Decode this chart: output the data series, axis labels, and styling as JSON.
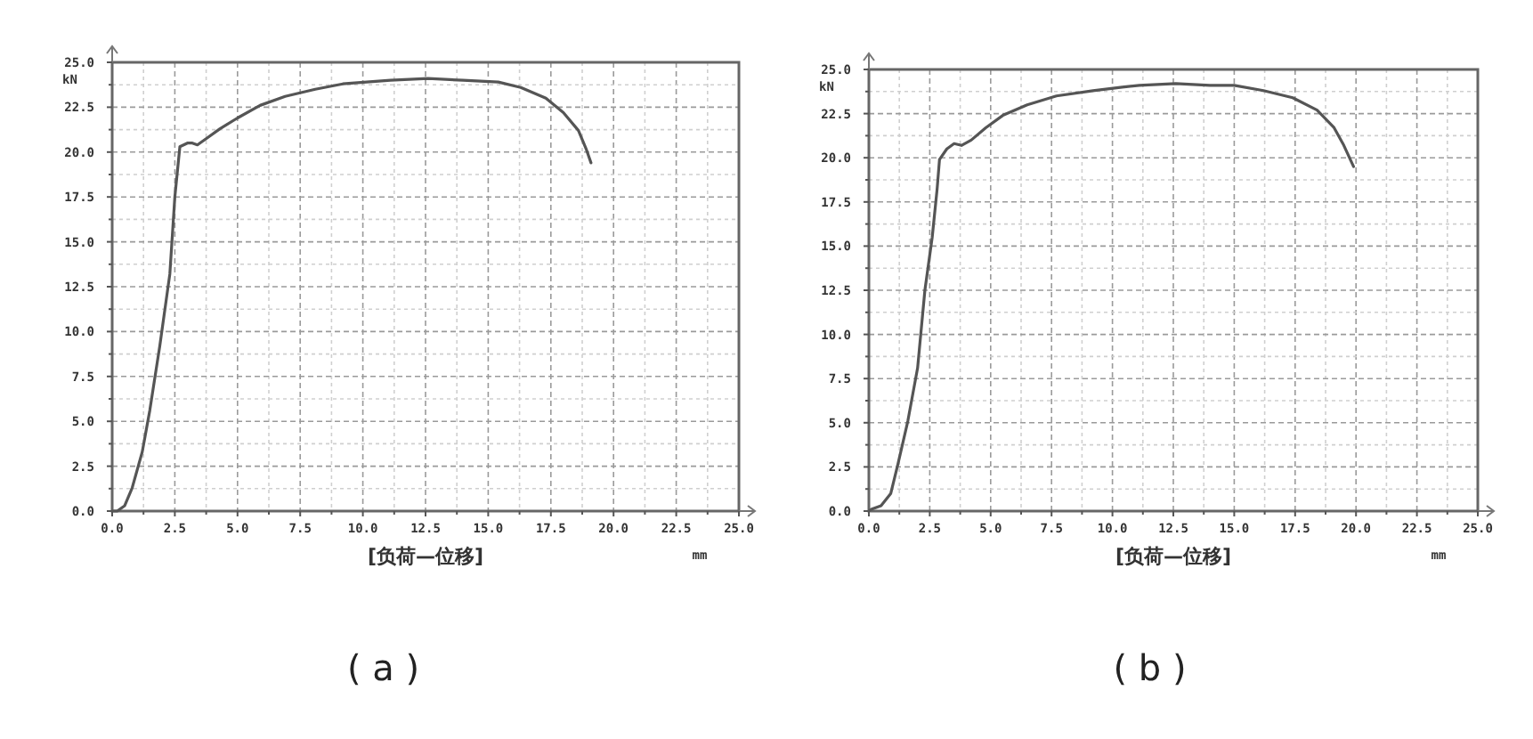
{
  "chart_data": [
    {
      "type": "line",
      "title": "( a )",
      "xlabel": "mm",
      "ylabel": "kN",
      "annotations": [
        "[负荷—位移]"
      ],
      "series": [
        {
          "color": "#555555",
          "x": [
            0,
            0.2,
            0.5,
            0.8,
            1.2,
            1.5,
            1.9,
            2.3,
            2.5,
            2.7,
            3.0,
            3.2,
            3.4,
            3.8,
            4.3,
            5.0,
            5.9,
            6.9,
            8.1,
            9.2,
            11.1,
            12.6,
            14.0,
            15.4,
            16.3,
            17.3,
            18.0,
            18.6,
            18.9,
            19.1
          ],
          "values": [
            0,
            0,
            0.3,
            1.3,
            3.3,
            5.6,
            9.2,
            13.2,
            17.5,
            20.3,
            20.5,
            20.5,
            20.4,
            20.8,
            21.3,
            21.9,
            22.6,
            23.1,
            23.5,
            23.8,
            24.0,
            24.1,
            24.0,
            23.9,
            23.6,
            23.0,
            22.2,
            21.2,
            20.2,
            19.4
          ]
        }
      ],
      "xlim": [
        0,
        25
      ],
      "ylim": [
        0,
        25
      ],
      "xticks": [
        {
          "value": 0,
          "label": "0.0"
        },
        {
          "value": 1.25,
          "label": null
        },
        {
          "value": 2.5,
          "label": "2.5"
        },
        {
          "value": 3.75,
          "label": null
        },
        {
          "value": 5,
          "label": "5.0"
        },
        {
          "value": 6.25,
          "label": null
        },
        {
          "value": 7.5,
          "label": "7.5"
        },
        {
          "value": 8.75,
          "label": null
        },
        {
          "value": 10,
          "label": "10.0"
        },
        {
          "value": 11.25,
          "label": null
        },
        {
          "value": 12.5,
          "label": "12.5"
        },
        {
          "value": 13.75,
          "label": null
        },
        {
          "value": 15,
          "label": "15.0"
        },
        {
          "value": 16.25,
          "label": null
        },
        {
          "value": 17.5,
          "label": "17.5"
        },
        {
          "value": 18.75,
          "label": null
        },
        {
          "value": 20,
          "label": "20.0"
        },
        {
          "value": 21.25,
          "label": null
        },
        {
          "value": 22.5,
          "label": "22.5"
        },
        {
          "value": 23.75,
          "label": null
        },
        {
          "value": 25,
          "label": "25.0"
        }
      ],
      "yticks": [
        {
          "value": 0,
          "label": "0.0"
        },
        {
          "value": 1.25,
          "label": null
        },
        {
          "value": 2.5,
          "label": "2.5"
        },
        {
          "value": 3.75,
          "label": null
        },
        {
          "value": 5,
          "label": "5.0"
        },
        {
          "value": 6.25,
          "label": null
        },
        {
          "value": 7.5,
          "label": "7.5"
        },
        {
          "value": 8.75,
          "label": null
        },
        {
          "value": 10,
          "label": "10.0"
        },
        {
          "value": 11.25,
          "label": null
        },
        {
          "value": 12.5,
          "label": "12.5"
        },
        {
          "value": 13.75,
          "label": null
        },
        {
          "value": 15,
          "label": "15.0"
        },
        {
          "value": 16.25,
          "label": null
        },
        {
          "value": 17.5,
          "label": "17.5"
        },
        {
          "value": 18.75,
          "label": null
        },
        {
          "value": 20,
          "label": "20.0"
        },
        {
          "value": 21.25,
          "label": null
        },
        {
          "value": 22.5,
          "label": "22.5"
        },
        {
          "value": 23.75,
          "label": null
        },
        {
          "value": 25,
          "label": "25.0"
        }
      ],
      "grid": true
    },
    {
      "type": "line",
      "title": "( b )",
      "xlabel": "mm",
      "ylabel": "kN",
      "annotations": [
        "[负荷—位移]"
      ],
      "series": [
        {
          "color": "#555555",
          "x": [
            0,
            0.1,
            0.5,
            0.9,
            1.2,
            1.6,
            2.0,
            2.3,
            2.6,
            2.8,
            2.9,
            3.2,
            3.5,
            3.8,
            4.2,
            4.8,
            5.5,
            6.5,
            7.7,
            9.2,
            10.4,
            11.1,
            12.6,
            14.0,
            15.0,
            16.2,
            17.4,
            18.4,
            19.1,
            19.5,
            19.9
          ],
          "values": [
            0,
            0.1,
            0.3,
            1.0,
            2.7,
            5.1,
            8.1,
            12.5,
            15.5,
            18.2,
            19.9,
            20.5,
            20.8,
            20.7,
            21.0,
            21.7,
            22.4,
            23.0,
            23.5,
            23.8,
            24.0,
            24.1,
            24.2,
            24.1,
            24.1,
            23.8,
            23.4,
            22.7,
            21.7,
            20.7,
            19.5
          ]
        }
      ],
      "xlim": [
        0,
        25
      ],
      "ylim": [
        0,
        25
      ],
      "xticks": [
        {
          "value": 0,
          "label": "0.0"
        },
        {
          "value": 1.25,
          "label": null
        },
        {
          "value": 2.5,
          "label": "2.5"
        },
        {
          "value": 3.75,
          "label": null
        },
        {
          "value": 5,
          "label": "5.0"
        },
        {
          "value": 6.25,
          "label": null
        },
        {
          "value": 7.5,
          "label": "7.5"
        },
        {
          "value": 8.75,
          "label": null
        },
        {
          "value": 10,
          "label": "10.0"
        },
        {
          "value": 11.25,
          "label": null
        },
        {
          "value": 12.5,
          "label": "12.5"
        },
        {
          "value": 13.75,
          "label": null
        },
        {
          "value": 15,
          "label": "15.0"
        },
        {
          "value": 16.25,
          "label": null
        },
        {
          "value": 17.5,
          "label": "17.5"
        },
        {
          "value": 18.75,
          "label": null
        },
        {
          "value": 20,
          "label": "20.0"
        },
        {
          "value": 21.25,
          "label": null
        },
        {
          "value": 22.5,
          "label": "22.5"
        },
        {
          "value": 23.75,
          "label": null
        },
        {
          "value": 25,
          "label": "25.0"
        }
      ],
      "yticks": [
        {
          "value": 0,
          "label": "0.0"
        },
        {
          "value": 1.25,
          "label": null
        },
        {
          "value": 2.5,
          "label": "2.5"
        },
        {
          "value": 3.75,
          "label": null
        },
        {
          "value": 5,
          "label": "5.0"
        },
        {
          "value": 6.25,
          "label": null
        },
        {
          "value": 7.5,
          "label": "7.5"
        },
        {
          "value": 8.75,
          "label": null
        },
        {
          "value": 10,
          "label": "10.0"
        },
        {
          "value": 11.25,
          "label": null
        },
        {
          "value": 12.5,
          "label": "12.5"
        },
        {
          "value": 13.75,
          "label": null
        },
        {
          "value": 15,
          "label": "15.0"
        },
        {
          "value": 16.25,
          "label": null
        },
        {
          "value": 17.5,
          "label": "17.5"
        },
        {
          "value": 18.75,
          "label": null
        },
        {
          "value": 20,
          "label": "20.0"
        },
        {
          "value": 21.25,
          "label": null
        },
        {
          "value": 22.5,
          "label": "22.5"
        },
        {
          "value": 23.75,
          "label": null
        },
        {
          "value": 25,
          "label": "25.0"
        }
      ],
      "grid": true
    }
  ]
}
